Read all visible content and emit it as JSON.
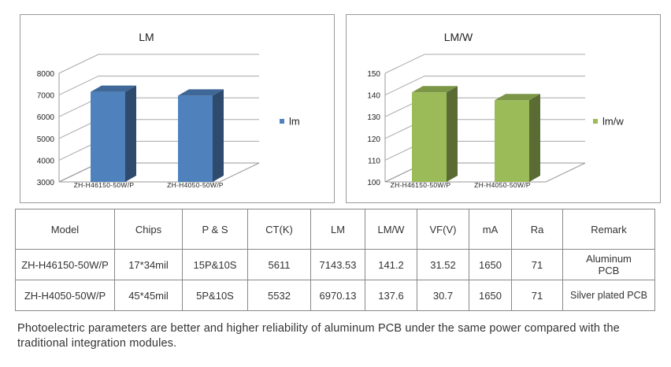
{
  "chart_data": [
    {
      "type": "bar",
      "title": "LM",
      "categories": [
        "ZH-H46150-50W/P",
        "ZH-H4050-50W/P"
      ],
      "series": [
        {
          "name": "lm",
          "values": [
            7143.53,
            6970.13
          ],
          "color": "#4f81bd"
        }
      ],
      "ylim": [
        3000,
        8000
      ],
      "yticks": [
        3000,
        4000,
        5000,
        6000,
        7000,
        8000
      ],
      "grid": true,
      "legend": "right"
    },
    {
      "type": "bar",
      "title": "LM/W",
      "categories": [
        "ZH-H46150-50W/P",
        "ZH-H4050-50W/P"
      ],
      "series": [
        {
          "name": "lm/w",
          "values": [
            141.2,
            137.6
          ],
          "color": "#9bbb59"
        }
      ],
      "ylim": [
        100,
        150
      ],
      "yticks": [
        100,
        110,
        120,
        130,
        140,
        150
      ],
      "grid": true,
      "legend": "right"
    }
  ],
  "table": {
    "headers": [
      "Model",
      "Chips",
      "P & S",
      "CT(K)",
      "LM",
      "LM/W",
      "VF(V)",
      "mA",
      "Ra",
      "Remark"
    ],
    "rows": [
      [
        "ZH-H46150-50W/P",
        "17*34mil",
        "15P&10S",
        "5611",
        "7143.53",
        "141.2",
        "31.52",
        "1650",
        "71",
        "Aluminum PCB"
      ],
      [
        "ZH-H4050-50W/P",
        "45*45mil",
        "5P&10S",
        "5532",
        "6970.13",
        "137.6",
        "30.7",
        "1650",
        "71",
        "Silver plated PCB"
      ]
    ]
  },
  "note": "Photoelectric parameters are better and higher reliability of aluminum PCB under the same power compared with the traditional integration modules."
}
